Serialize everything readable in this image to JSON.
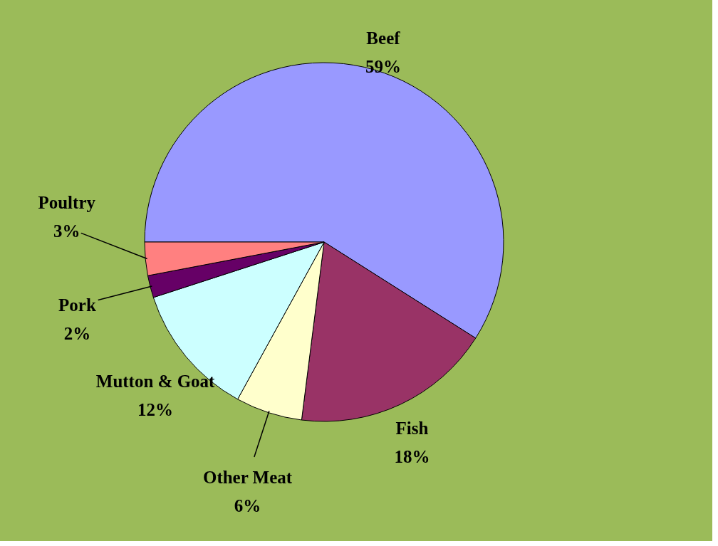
{
  "chart_data": {
    "type": "pie",
    "categories": [
      "Beef",
      "Fish",
      "Other Meat",
      "Mutton & Goat",
      "Pork",
      "Poultry"
    ],
    "values": [
      59,
      18,
      6,
      12,
      2,
      3
    ],
    "value_labels": [
      "59%",
      "18%",
      "6%",
      "12%",
      "2%",
      "3%"
    ],
    "colors": [
      "#9999ff",
      "#993366",
      "#ffffcc",
      "#ccffff",
      "#660066",
      "#ff8080"
    ]
  }
}
